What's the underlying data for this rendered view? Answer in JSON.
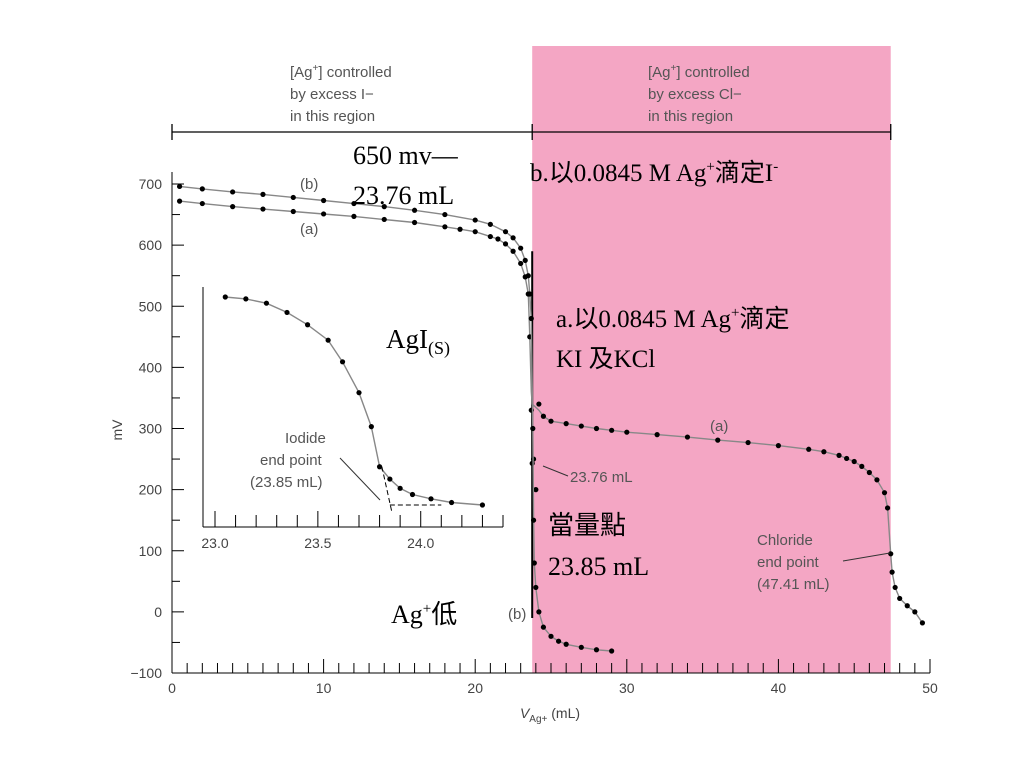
{
  "chart_data": {
    "type": "line",
    "xlabel": "V",
    "xlabel_sub": "Ag+",
    "xlabel_unit": " (mL)",
    "ylabel": "mV",
    "xlim": [
      0,
      50
    ],
    "ylim": [
      -100,
      700
    ],
    "x_ticks": [
      "0",
      "10",
      "20",
      "30",
      "40",
      "50"
    ],
    "y_ticks": [
      "−100",
      "0",
      "100",
      "200",
      "300",
      "400",
      "500",
      "600",
      "700"
    ],
    "regions": {
      "iodide": {
        "x_range": [
          0,
          23.76
        ],
        "lines": [
          "[Ag+] controlled",
          "by excess I−",
          "in this region"
        ]
      },
      "chloride": {
        "x_range": [
          23.76,
          47.41
        ],
        "lines": [
          "[Ag+] controlled",
          "by excess Cl−",
          "in this region"
        ],
        "color": "#f4a6c4"
      }
    },
    "series": [
      {
        "name": "(a)",
        "points": [
          [
            0.5,
            672
          ],
          [
            2,
            668
          ],
          [
            4,
            663
          ],
          [
            6,
            659
          ],
          [
            8,
            655
          ],
          [
            10,
            651
          ],
          [
            12,
            647
          ],
          [
            14,
            642
          ],
          [
            16,
            637
          ],
          [
            18,
            630
          ],
          [
            19,
            626
          ],
          [
            20,
            622
          ],
          [
            21,
            614
          ],
          [
            21.5,
            610
          ],
          [
            22,
            602
          ],
          [
            22.5,
            590
          ],
          [
            23,
            570
          ],
          [
            23.3,
            548
          ],
          [
            23.5,
            520
          ],
          [
            23.6,
            450
          ],
          [
            23.7,
            330
          ],
          [
            23.85,
            250
          ],
          [
            24,
            200
          ],
          [
            23.76,
            243
          ],
          [
            24.2,
            340
          ],
          [
            24.5,
            320
          ],
          [
            25,
            312
          ],
          [
            26,
            308
          ],
          [
            27,
            304
          ],
          [
            28,
            300
          ],
          [
            29,
            297
          ],
          [
            30,
            294
          ],
          [
            32,
            290
          ],
          [
            34,
            286
          ],
          [
            36,
            281
          ],
          [
            38,
            277
          ],
          [
            40,
            272
          ],
          [
            42,
            266
          ],
          [
            43,
            262
          ],
          [
            44,
            256
          ],
          [
            44.5,
            251
          ],
          [
            45,
            246
          ],
          [
            45.5,
            238
          ],
          [
            46,
            228
          ],
          [
            46.5,
            216
          ],
          [
            47,
            195
          ],
          [
            47.2,
            170
          ],
          [
            47.41,
            95
          ],
          [
            47.5,
            65
          ],
          [
            47.7,
            40
          ],
          [
            48,
            22
          ],
          [
            48.5,
            10
          ],
          [
            49,
            0
          ],
          [
            49.5,
            -18
          ]
        ]
      },
      {
        "name": "(b)",
        "points": [
          [
            0.5,
            696
          ],
          [
            2,
            692
          ],
          [
            4,
            687
          ],
          [
            6,
            683
          ],
          [
            8,
            678
          ],
          [
            10,
            673
          ],
          [
            12,
            668
          ],
          [
            14,
            663
          ],
          [
            16,
            657
          ],
          [
            18,
            650
          ],
          [
            20,
            641
          ],
          [
            21,
            634
          ],
          [
            22,
            622
          ],
          [
            22.5,
            612
          ],
          [
            23,
            595
          ],
          [
            23.3,
            575
          ],
          [
            23.5,
            550
          ],
          [
            23.6,
            520
          ],
          [
            23.7,
            480
          ],
          [
            23.8,
            300
          ],
          [
            23.85,
            150
          ],
          [
            23.9,
            80
          ],
          [
            24,
            40
          ],
          [
            24.2,
            0
          ],
          [
            24.5,
            -25
          ],
          [
            25,
            -40
          ],
          [
            25.5,
            -48
          ],
          [
            26,
            -53
          ],
          [
            27,
            -58
          ],
          [
            28,
            -62
          ],
          [
            29,
            -64
          ]
        ]
      }
    ],
    "inset": {
      "xlim": [
        23.0,
        24.4
      ],
      "x_ticks": [
        "23.0",
        "23.5",
        "24.0"
      ],
      "points": [
        [
          23.05,
          515
        ],
        [
          23.15,
          512
        ],
        [
          23.25,
          505
        ],
        [
          23.35,
          490
        ],
        [
          23.45,
          470
        ],
        [
          23.55,
          445
        ],
        [
          23.62,
          410
        ],
        [
          23.7,
          360
        ],
        [
          23.76,
          305
        ],
        [
          23.8,
          240
        ],
        [
          23.85,
          220
        ],
        [
          23.9,
          205
        ],
        [
          23.96,
          195
        ],
        [
          24.05,
          188
        ],
        [
          24.15,
          182
        ],
        [
          24.3,
          178
        ]
      ]
    },
    "annotations": {
      "iodide_end": [
        "Iodide",
        "end point",
        "(23.85 mL)"
      ],
      "chloride_end": [
        "Chloride",
        "end point",
        "(47.41 mL)"
      ],
      "marker_2376": "23.76 mL",
      "label_a_right": "(a)",
      "label_b_top": "(b)",
      "label_a_top": "(a)",
      "label_b_bottom": "(b)"
    },
    "overlays": {
      "mv_650": "650 mv—",
      "ml_2376": "23.76 mL",
      "b_title_pre": "b.以0.0845 M Ag",
      "b_title_sup": "+",
      "b_title_mid": "滴定I",
      "b_title_sup2": "-",
      "a_title_pre": "a.以0.0845 M Ag",
      "a_title_sup": "+",
      "a_title_mid": "滴定",
      "a_title_line2": "KI 及KCl",
      "agi": "AgI",
      "agi_sub": "(S)",
      "eq_point": "當量點",
      "eq_value": "23.85 mL",
      "ag_low_pre": "Ag",
      "ag_low_sup": "+",
      "ag_low_post": "低"
    }
  }
}
